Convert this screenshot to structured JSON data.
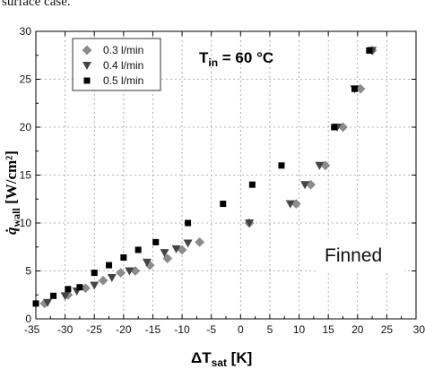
{
  "caption_fragment": "surface case.",
  "chart_data": {
    "type": "scatter",
    "xlim": [
      -35,
      30
    ],
    "ylim": [
      0,
      30
    ],
    "xticks": [
      -35,
      -30,
      -25,
      -20,
      -15,
      -10,
      -5,
      0,
      5,
      10,
      15,
      20,
      25,
      30
    ],
    "yticks": [
      0,
      5,
      10,
      15,
      20,
      25,
      30
    ],
    "xlabel": {
      "main": "ΔT",
      "sub": "sat",
      "unit": " [K]"
    },
    "ylabel": {
      "main": "q̇",
      "sub": "wall",
      "unit": " [W/cm²]"
    },
    "grid": true,
    "legend_position": "top-left",
    "annotations": {
      "condition": {
        "main": "T",
        "sub": "in",
        "rest": " = 60 °C"
      },
      "surface": "Finned"
    },
    "series": [
      {
        "name": "0.3 l/min",
        "marker": "diamond",
        "color": "#8c8c8c",
        "x": [
          -33.5,
          -29.5,
          -26.5,
          -23.5,
          -20.5,
          -18,
          -15.5,
          -12.5,
          -10,
          -7,
          1.5,
          9.5,
          12,
          14.5,
          17.5,
          20.5,
          22.5
        ],
        "y": [
          1.6,
          2.5,
          3.2,
          4.0,
          4.8,
          5.0,
          5.6,
          6.3,
          7.2,
          8.0,
          10.0,
          12.0,
          14.0,
          16.0,
          20.0,
          24.0,
          28.0
        ]
      },
      {
        "name": "0.4 l/min",
        "marker": "triangle-down",
        "color": "#444444",
        "x": [
          -33,
          -30,
          -28,
          -25,
          -22,
          -19,
          -16,
          -13,
          -11,
          -9,
          1.5,
          8.5,
          11,
          13.5,
          16.5,
          19.5,
          22.5
        ],
        "y": [
          1.7,
          2.4,
          2.9,
          3.5,
          4.3,
          5.0,
          5.9,
          6.9,
          7.3,
          7.9,
          10.0,
          12.0,
          14.0,
          16.0,
          20.0,
          24.0,
          28.0
        ]
      },
      {
        "name": "0.5 l/min",
        "marker": "square",
        "color": "#000000",
        "x": [
          -35,
          -32,
          -29.5,
          -27.5,
          -25,
          -22.5,
          -20,
          -17.5,
          -14.5,
          -9,
          -3,
          2,
          7,
          16,
          19.5,
          22
        ],
        "y": [
          1.6,
          2.4,
          3.1,
          3.3,
          4.8,
          5.6,
          6.4,
          7.2,
          8.0,
          10.0,
          12.0,
          14.0,
          16.0,
          20.0,
          24.0,
          28.0
        ]
      }
    ]
  }
}
